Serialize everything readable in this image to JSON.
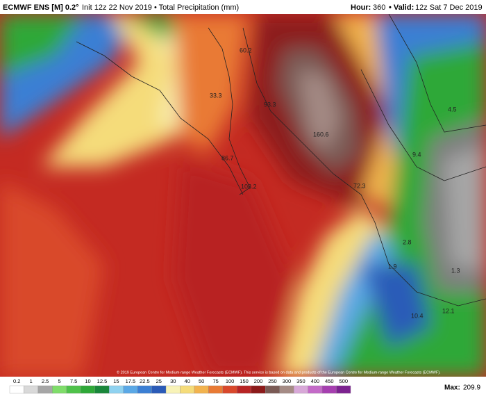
{
  "header": {
    "model": "ECMWF ENS [M] 0.2°",
    "info": "Init 12z 22 Nov 2019 • Total Precipitation (mm)",
    "hour_label": "Hour:",
    "hour": "360",
    "valid_label": "• Valid:",
    "valid": "12z Sat 7 Dec 2019"
  },
  "map": {
    "point_labels": [
      60.2,
      33.3,
      93.3,
      160.6,
      86.7,
      108.2,
      72.3,
      4.5,
      9.4,
      2.8,
      1.9,
      1.3,
      12.1,
      10.4
    ],
    "copyright": "© 2019 European Centre for Medium-range Weather Forecasts (ECMWF). This service is based on data and products of the European Centre for Medium-range Weather Forecasts (ECMWF)."
  },
  "legend": {
    "labels": [
      "0.2",
      "1",
      "2.5",
      "5",
      "7.5",
      "10",
      "12.5",
      "15",
      "17.5",
      "22.5",
      "25",
      "30",
      "40",
      "50",
      "75",
      "100",
      "150",
      "200",
      "250",
      "300",
      "350",
      "400",
      "450",
      "500"
    ],
    "colors": [
      "#ffffff",
      "#d9d9d9",
      "#a6a6a6",
      "#7fdd6a",
      "#4fc24a",
      "#2ea838",
      "#19873a",
      "#8fd2f0",
      "#5aa8e6",
      "#3b7fd4",
      "#2a5bb8",
      "#f8f3b8",
      "#f5dc7a",
      "#f2b34e",
      "#e97a34",
      "#d9482b",
      "#b82424",
      "#8c1a1a",
      "#7a5a55",
      "#a58b85",
      "#d8a8d8",
      "#c46ac8",
      "#a63fb0",
      "#7c2290"
    ],
    "max_label": "Max:",
    "max": 209.9
  }
}
